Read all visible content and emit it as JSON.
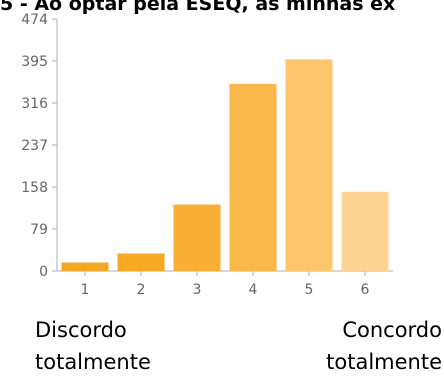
{
  "title": "5 - Ao optar pela ESEQ, as minhas ex",
  "chart_data": {
    "type": "bar",
    "categories": [
      "1",
      "2",
      "3",
      "4",
      "5",
      "6"
    ],
    "values": [
      16,
      33,
      125,
      352,
      398,
      149
    ],
    "ylim": [
      0,
      474
    ],
    "yticks": [
      "0",
      "79",
      "158",
      "237",
      "316",
      "395",
      "474"
    ],
    "grid": false,
    "bar_colors": [
      "#f5a623",
      "#f7a825",
      "#f9ae35",
      "#fbb84a",
      "#fdc56e",
      "#fdd494"
    ]
  },
  "scale_labels": {
    "left": [
      "Discordo",
      "totalmente"
    ],
    "right": [
      "Concordo",
      "totalmente"
    ]
  }
}
